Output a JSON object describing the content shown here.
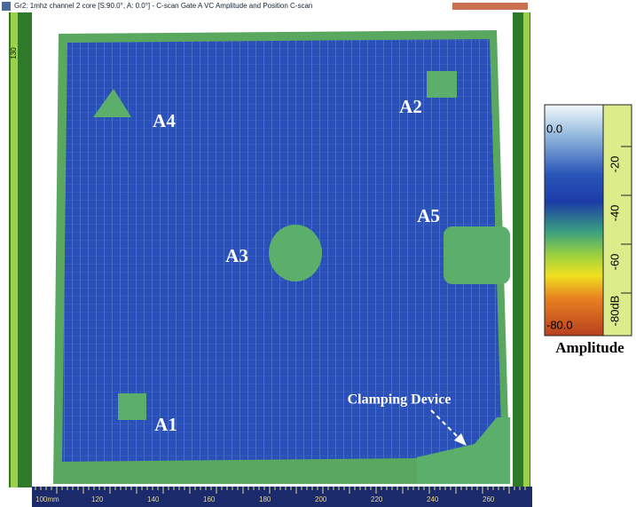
{
  "title_bar": "Gr2: 1mhz channel 2 core [S:90.0°, A: 0.0°] - C-scan Gate A VC Amplitude and Position C-scan",
  "left_ruler_label": "130",
  "region_labels": [
    "A4",
    "A2",
    "A5",
    "A3",
    "A1"
  ],
  "annotation": "Clamping Device",
  "colorbar": {
    "top_label": "0.0",
    "bottom_label": "-80.0",
    "scale_labels": [
      "-20",
      "-40",
      "-60",
      "-80dB"
    ],
    "title": "Amplitude"
  },
  "bottom_ruler": [
    "100mm",
    "120",
    "140",
    "160",
    "180",
    "200",
    "220",
    "240",
    "260"
  ]
}
